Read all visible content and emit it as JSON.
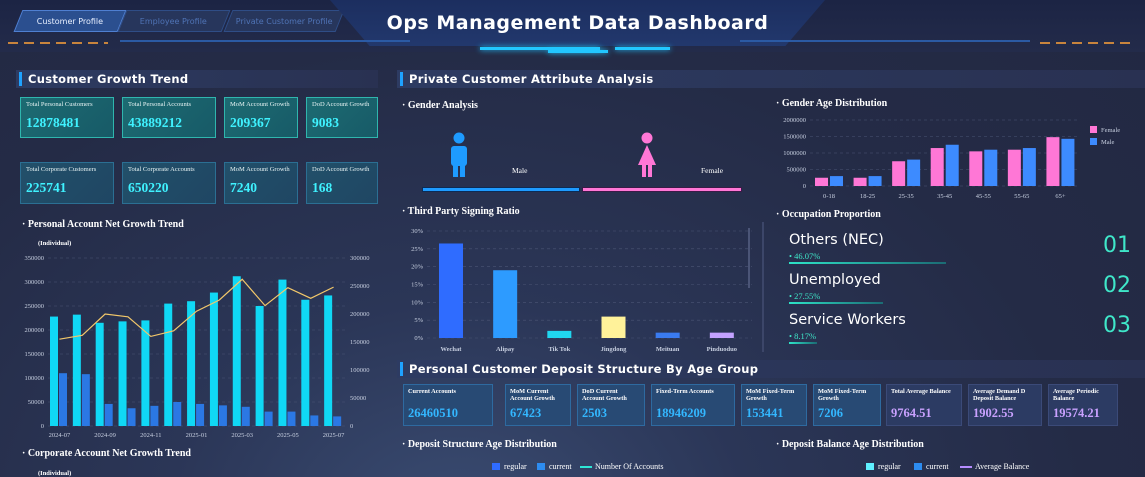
{
  "tabs": [
    "Customer Profile",
    "Employee Profile",
    "Private Customer Profile"
  ],
  "title": "Ops Management Data Dashboard",
  "left": {
    "section": "Customer Growth Trend",
    "personal_cards": [
      {
        "label": "Total Personal Customers",
        "value": "12878481"
      },
      {
        "label": "Total Personal Accounts",
        "value": "43889212"
      },
      {
        "label": "MoM Account Growth",
        "value": "209367"
      },
      {
        "label": "DoD Account Growth",
        "value": "9083"
      }
    ],
    "corporate_cards": [
      {
        "label": "Total Corporate Customers",
        "value": "225741"
      },
      {
        "label": "Total Corporate Accounts",
        "value": "650220"
      },
      {
        "label": "MoM Account Growth",
        "value": "7240"
      },
      {
        "label": "DoD Account Growth",
        "value": "168"
      }
    ],
    "personal_chart_title": "· Personal Account Net Growth Trend",
    "unit": "(Individual)",
    "corporate_chart_title": "· Corporate Account Net Growth Trend"
  },
  "attr": {
    "section": "Private Customer Attribute Analysis",
    "gender_title": "· Gender Analysis",
    "male": "Male",
    "female": "Female",
    "male_color": "#1e9bff",
    "female_color": "#ff77d6",
    "gender_age_title": "· Gender Age Distribution",
    "third_party_title": "· Third Party Signing Ratio",
    "occupation_title": "· Occupation Proportion",
    "occupations": [
      {
        "name": "Others (NEC)",
        "pct": "• 46.07%",
        "rank": "01",
        "ratio": 0.4607
      },
      {
        "name": "Unemployed",
        "pct": "• 27.55%",
        "rank": "02",
        "ratio": 0.2755
      },
      {
        "name": "Service Workers",
        "pct": "• 8.17%",
        "rank": "03",
        "ratio": 0.0817
      }
    ]
  },
  "deposit": {
    "section": "Personal Customer Deposit Structure By Age Group",
    "cards": [
      {
        "label": "Current Accounts",
        "value": "26460510"
      },
      {
        "label": "MoM Current Account Growth",
        "value": "67423"
      },
      {
        "label": "DoD Current Account Growth",
        "value": "2503"
      },
      {
        "label": "Fixed-Term Accounts",
        "value": "18946209"
      },
      {
        "label": "MoM Fixed-Term Growth",
        "value": "153441"
      },
      {
        "label": "MoM Fixed-Term Growth",
        "value": "7206"
      },
      {
        "label": "Total Average Balance",
        "value": "9764.51"
      },
      {
        "label": "Average Demand D Deposit Balance",
        "value": "1902.55"
      },
      {
        "label": "Average Periodic Balance",
        "value": "19574.21"
      }
    ],
    "structure_title": "· Deposit Structure Age Distribution",
    "balance_title": "· Deposit Balance Age Distribution",
    "legend_left": [
      "regular",
      "current",
      "Number Of Accounts"
    ],
    "legend_right": [
      "regular",
      "current",
      "Average Balance"
    ]
  },
  "chart_data": [
    {
      "type": "bar",
      "name": "Personal Account Net Growth Trend",
      "ylabel": "(Individual)",
      "categories": [
        "2024-07",
        "2024-08",
        "2024-09",
        "2024-10",
        "2024-11",
        "2024-12",
        "2025-01",
        "2025-02",
        "2025-03",
        "2025-04",
        "2025-05",
        "2025-06",
        "2025-07"
      ],
      "x_tick_labels": [
        "2024-07",
        "2024-09",
        "2024-11",
        "2025-01",
        "2025-03",
        "2025-05",
        "2025-07"
      ],
      "series": [
        {
          "values": [
            228000,
            232000,
            215000,
            218000,
            220000,
            255000,
            260000,
            278000,
            312000,
            250000,
            305000,
            263000,
            272000
          ]
        },
        {
          "values": [
            110000,
            108000,
            46000,
            37000,
            42000,
            50000,
            46000,
            43000,
            40000,
            30000,
            30000,
            22000,
            20000
          ]
        },
        {
          "values": [
            155000,
            162000,
            200000,
            195000,
            160000,
            170000,
            205000,
            225000,
            262000,
            215000,
            247000,
            228000,
            248000
          ]
        }
      ],
      "ylim": [
        0,
        350000
      ],
      "y2lim": [
        0,
        300000
      ],
      "yticks": [
        0,
        50000,
        100000,
        150000,
        200000,
        250000,
        300000,
        350000
      ],
      "y2ticks": [
        0,
        50000,
        100000,
        150000,
        200000,
        250000,
        300000
      ]
    },
    {
      "type": "bar",
      "name": "Gender Age Distribution",
      "categories": [
        "0-18",
        "18-25",
        "25-35",
        "35-45",
        "45-55",
        "55-65",
        "65+"
      ],
      "series": [
        {
          "name": "Female",
          "values": [
            250000,
            250000,
            750000,
            1150000,
            1050000,
            1100000,
            1480000
          ]
        },
        {
          "name": "Male",
          "values": [
            300000,
            300000,
            800000,
            1250000,
            1100000,
            1150000,
            1430000
          ]
        }
      ],
      "ylim": [
        0,
        2000000
      ],
      "yticks": [
        0,
        500000,
        1000000,
        1500000,
        2000000
      ]
    },
    {
      "type": "bar",
      "name": "Third Party Signing Ratio",
      "categories": [
        "Wechat",
        "Alipay",
        "Tik Tok",
        "Jingdong",
        "Meituan",
        "Pinduoduo"
      ],
      "values": [
        26.5,
        19,
        2,
        6,
        1.5,
        1.5
      ],
      "ylim": [
        0,
        30
      ],
      "yticks": [
        "0%",
        "5%",
        "10%",
        "15%",
        "20%",
        "25%",
        "30%"
      ]
    }
  ]
}
